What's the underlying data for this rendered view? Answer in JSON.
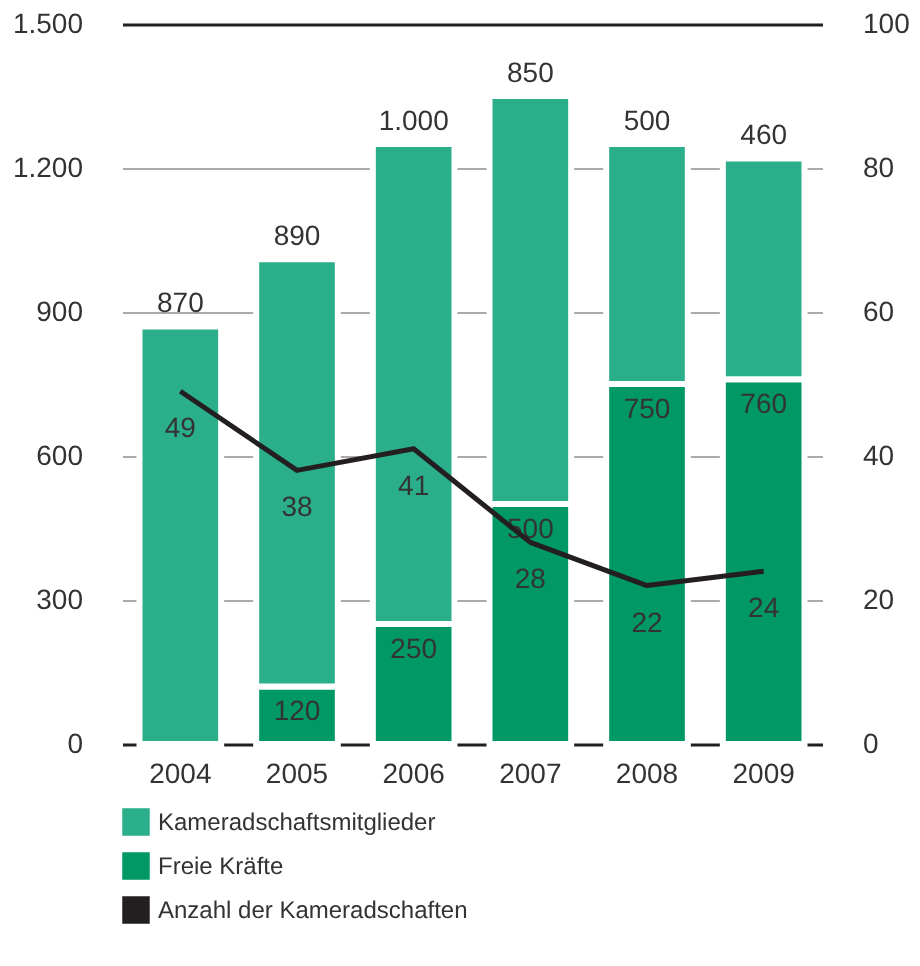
{
  "chart_data": {
    "type": "bar",
    "stacked": true,
    "categories": [
      "2004",
      "2005",
      "2006",
      "2007",
      "2008",
      "2009"
    ],
    "series": [
      {
        "name": "Freie Kräfte",
        "color": "#009864",
        "values": [
          null,
          120,
          250,
          500,
          750,
          760
        ]
      },
      {
        "name": "Kameradschaftsmitglieder",
        "color": "#2baf8b",
        "values": [
          870,
          890,
          1000,
          850,
          500,
          460
        ],
        "value_labels": [
          "870",
          "890",
          "1.000",
          "850",
          "500",
          "460"
        ]
      },
      {
        "name": "Anzahl der Kameradschaften",
        "type": "line",
        "axis": "y2",
        "color": "#231f20",
        "values": [
          49,
          38,
          41,
          28,
          22,
          24
        ]
      }
    ],
    "ylim": [
      0,
      1500
    ],
    "yticks": [
      0,
      300,
      600,
      900,
      {
        "value": 1200,
        "label": "1.200"
      },
      {
        "value": 1500,
        "label": "1.500"
      }
    ],
    "y2lim": [
      0,
      100
    ],
    "y2ticks": [
      0,
      20,
      40,
      60,
      80,
      100
    ],
    "data_labels": true,
    "grid": "y",
    "legend": "bottom left"
  }
}
